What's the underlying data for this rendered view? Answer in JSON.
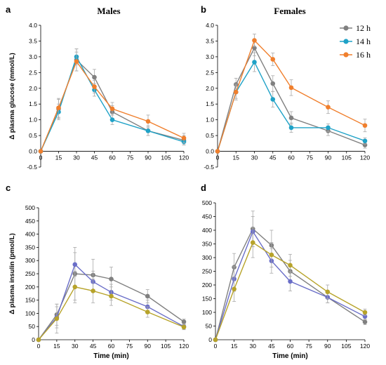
{
  "figure": {
    "panel_letters": [
      "a",
      "b",
      "c",
      "d"
    ],
    "column_titles": [
      "Males",
      "Females"
    ],
    "legend_title": "",
    "legend": [
      {
        "label": "12 h",
        "color": "#808080"
      },
      {
        "label": "14 h",
        "color": "#1fa2c7"
      },
      {
        "label": "16 h",
        "color": "#f07f2d"
      }
    ]
  },
  "chart_data": [
    {
      "type": "line",
      "panel": "a",
      "title": "Males",
      "xlabel": "",
      "ylabel": "Δ plasma glucose (mmol/L)",
      "x": [
        0,
        15,
        30,
        45,
        60,
        90,
        120
      ],
      "xticks": [
        "0",
        "15",
        "30",
        "45",
        "60",
        "75",
        "90",
        "105",
        "120"
      ],
      "xlim": [
        0,
        120
      ],
      "yticks": [
        "-0.5",
        "0.0",
        "0.5",
        "1.0",
        "1.5",
        "2.0",
        "2.5",
        "3.0",
        "3.5",
        "4.0"
      ],
      "ylim": [
        -0.5,
        4.0
      ],
      "grid": false,
      "series": [
        {
          "name": "12 h",
          "color": "#808080",
          "values": [
            0,
            1.35,
            2.9,
            2.35,
            1.25,
            0.65,
            0.35
          ],
          "errors": [
            0,
            0.3,
            0.35,
            0.25,
            0.2,
            0.15,
            0.15
          ]
        },
        {
          "name": "14 h",
          "color": "#1fa2c7",
          "values": [
            0,
            1.25,
            3.0,
            1.95,
            1.0,
            0.65,
            0.3
          ],
          "errors": [
            0,
            0.25,
            0.25,
            0.2,
            0.15,
            0.15,
            0.1
          ]
        },
        {
          "name": "16 h",
          "color": "#f07f2d",
          "values": [
            0,
            1.38,
            2.85,
            2.05,
            1.35,
            0.95,
            0.42
          ],
          "errors": [
            0,
            0.3,
            0.3,
            0.2,
            0.2,
            0.2,
            0.15
          ]
        }
      ]
    },
    {
      "type": "line",
      "panel": "b",
      "title": "Females",
      "xlabel": "",
      "ylabel": "",
      "x": [
        0,
        15,
        30,
        45,
        60,
        90,
        120
      ],
      "xticks": [
        "0",
        "15",
        "30",
        "45",
        "60",
        "75",
        "90",
        "105",
        "120"
      ],
      "xlim": [
        0,
        120
      ],
      "yticks": [
        "-0.5",
        "0.0",
        "0.5",
        "1.0",
        "1.5",
        "2.0",
        "2.5",
        "3.0",
        "3.5",
        "4.0"
      ],
      "ylim": [
        -0.5,
        4.0
      ],
      "grid": false,
      "series": [
        {
          "name": "12 h",
          "color": "#808080",
          "values": [
            0,
            2.12,
            3.28,
            2.15,
            1.06,
            0.65,
            0.2
          ],
          "errors": [
            0,
            0.2,
            0.25,
            0.25,
            0.2,
            0.15,
            0.1
          ]
        },
        {
          "name": "14 h",
          "color": "#1fa2c7",
          "values": [
            0,
            1.88,
            2.83,
            1.65,
            0.75,
            0.75,
            0.33
          ],
          "errors": [
            0,
            0.2,
            0.3,
            0.25,
            0.15,
            0.12,
            0.1
          ]
        },
        {
          "name": "16 h",
          "color": "#f07f2d",
          "values": [
            0,
            1.88,
            3.52,
            2.92,
            2.02,
            1.4,
            0.82
          ],
          "errors": [
            0,
            0.25,
            0.2,
            0.2,
            0.25,
            0.2,
            0.2
          ]
        }
      ]
    },
    {
      "type": "line",
      "panel": "c",
      "title": "",
      "xlabel": "Time (min)",
      "ylabel": "Δ plasma insulin (pmol/L)",
      "x": [
        0,
        15,
        30,
        45,
        60,
        90,
        120
      ],
      "xticks": [
        "0",
        "15",
        "30",
        "45",
        "60",
        "75",
        "90",
        "105",
        "120"
      ],
      "xlim": [
        0,
        120
      ],
      "yticks": [
        "0",
        "50",
        "100",
        "150",
        "200",
        "250",
        "300",
        "350",
        "400",
        "450",
        "500"
      ],
      "ylim": [
        0,
        500
      ],
      "grid": false,
      "series": [
        {
          "name": "",
          "color": "#808080",
          "values": [
            0,
            95,
            250,
            245,
            230,
            165,
            68
          ],
          "errors": [
            0,
            40,
            100,
            60,
            45,
            25,
            10
          ]
        },
        {
          "name": "",
          "color": "#6a6ec8",
          "values": [
            0,
            85,
            285,
            220,
            180,
            125,
            50
          ],
          "errors": [
            0,
            40,
            45,
            40,
            30,
            25,
            10
          ]
        },
        {
          "name": "",
          "color": "#b7a32a",
          "values": [
            0,
            80,
            200,
            185,
            165,
            105,
            48
          ],
          "errors": [
            0,
            55,
            60,
            45,
            35,
            20,
            10
          ]
        }
      ]
    },
    {
      "type": "line",
      "panel": "d",
      "title": "",
      "xlabel": "Time (min)",
      "ylabel": "",
      "x": [
        0,
        15,
        30,
        45,
        60,
        90,
        120
      ],
      "xticks": [
        "0",
        "15",
        "30",
        "45",
        "60",
        "75",
        "90",
        "105",
        "120"
      ],
      "xlim": [
        0,
        120
      ],
      "yticks": [
        "0",
        "50",
        "100",
        "150",
        "200",
        "250",
        "300",
        "350",
        "400",
        "450",
        "500"
      ],
      "ylim": [
        0,
        500
      ],
      "grid": false,
      "series": [
        {
          "name": "",
          "color": "#808080",
          "values": [
            0,
            265,
            405,
            345,
            250,
            155,
            65
          ],
          "errors": [
            0,
            50,
            65,
            55,
            40,
            20,
            10
          ]
        },
        {
          "name": "",
          "color": "#6a6ec8",
          "values": [
            0,
            222,
            395,
            288,
            213,
            155,
            85
          ],
          "errors": [
            0,
            45,
            55,
            45,
            35,
            20,
            12
          ]
        },
        {
          "name": "",
          "color": "#b7a32a",
          "values": [
            0,
            185,
            355,
            310,
            272,
            175,
            100
          ],
          "errors": [
            0,
            45,
            55,
            45,
            40,
            25,
            12
          ]
        }
      ]
    }
  ]
}
